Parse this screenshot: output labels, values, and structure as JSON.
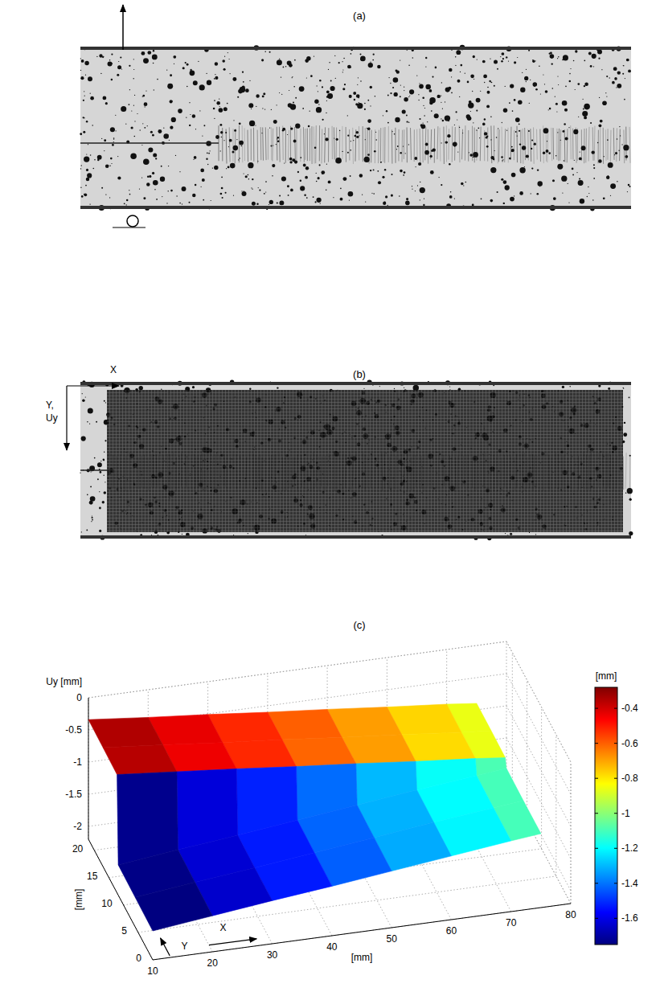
{
  "panels": [
    {
      "label": "(a)"
    },
    {
      "label": "(b)",
      "x_label": "X",
      "y_label": [
        "Y,",
        "Uy"
      ]
    }
  ],
  "chart_data": {
    "type": "surface",
    "title": "(c)",
    "x_label": "X",
    "x_unit": "[mm]",
    "y_label": "Y",
    "y_unit": "[mm]",
    "z_label": "Uy [mm]",
    "x": [
      10,
      20,
      30,
      40,
      50,
      60,
      70,
      75
    ],
    "y": [
      0,
      6,
      11.8,
      12.2,
      17,
      22
    ],
    "values": [
      [
        -1.75,
        -1.64,
        -1.53,
        -1.43,
        -1.32,
        -1.21,
        -1.1,
        -1.05
      ],
      [
        -1.74,
        -1.63,
        -1.53,
        -1.42,
        -1.31,
        -1.2,
        -1.1,
        -1.05
      ],
      [
        -1.73,
        -1.62,
        -1.52,
        -1.41,
        -1.3,
        -1.19,
        -1.09,
        -1.04
      ],
      [
        -0.36,
        -0.44,
        -0.52,
        -0.61,
        -0.69,
        -0.78,
        -0.86,
        -0.91
      ],
      [
        -0.35,
        -0.43,
        -0.52,
        -0.6,
        -0.69,
        -0.77,
        -0.86,
        -0.9
      ],
      [
        -0.34,
        -0.43,
        -0.51,
        -0.6,
        -0.68,
        -0.77,
        -0.85,
        -0.9
      ]
    ],
    "xlim": [
      10,
      80
    ],
    "xticks": [
      10,
      20,
      30,
      40,
      50,
      60,
      70,
      80
    ],
    "ylim": [
      0,
      22
    ],
    "yticks": [
      0,
      5,
      10,
      15,
      20
    ],
    "zlim": [
      -2.2,
      0
    ],
    "zticks": [
      -2,
      -1.5,
      -1,
      -0.5,
      0
    ],
    "colorbar": {
      "label": "[mm]",
      "range": [
        -1.75,
        -0.28
      ],
      "ticks": [
        -1.6,
        -1.4,
        -1.2,
        -1,
        -0.8,
        -0.6,
        -0.4
      ]
    },
    "grid": true
  }
}
